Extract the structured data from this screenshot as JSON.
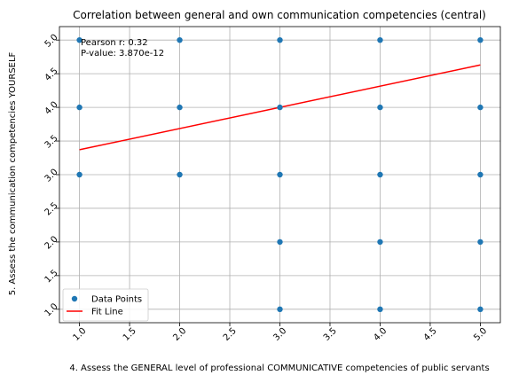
{
  "chart_data": {
    "type": "scatter",
    "title": "Correlation between general and own communication competencies (central)",
    "xlabel": "4. Assess the GENERAL level of professional COMMUNICATIVE competencies of public servants",
    "ylabel": "5. Assess the communication competencies YOURSELF",
    "xlim": [
      0.8,
      5.2
    ],
    "ylim": [
      0.8,
      5.2
    ],
    "xticks": [
      "1.0",
      "1.5",
      "2.0",
      "2.5",
      "3.0",
      "3.5",
      "4.0",
      "4.5",
      "5.0"
    ],
    "yticks": [
      "1.0",
      "1.5",
      "2.0",
      "2.5",
      "3.0",
      "3.5",
      "4.0",
      "4.5",
      "5.0"
    ],
    "grid": true,
    "series": [
      {
        "name": "Data Points",
        "kind": "scatter",
        "color": "#1f77b4",
        "points": [
          [
            1,
            5
          ],
          [
            1,
            4
          ],
          [
            1,
            3
          ],
          [
            2,
            5
          ],
          [
            2,
            4
          ],
          [
            2,
            3
          ],
          [
            3,
            5
          ],
          [
            3,
            4
          ],
          [
            3,
            3
          ],
          [
            3,
            2
          ],
          [
            3,
            1
          ],
          [
            4,
            5
          ],
          [
            4,
            4
          ],
          [
            4,
            3
          ],
          [
            4,
            2
          ],
          [
            4,
            1
          ],
          [
            5,
            5
          ],
          [
            5,
            4
          ],
          [
            5,
            3
          ],
          [
            5,
            2
          ],
          [
            5,
            1
          ]
        ]
      },
      {
        "name": "Fit Line",
        "kind": "line",
        "color": "#ff0000",
        "points": [
          [
            1,
            3.37
          ],
          [
            5,
            4.63
          ]
        ]
      }
    ],
    "annotations": [
      "Pearson r: 0.32",
      "P-value: 3.870e-12"
    ],
    "legend": {
      "position": "lower-left",
      "entries": [
        "Data Points",
        "Fit Line"
      ]
    }
  }
}
